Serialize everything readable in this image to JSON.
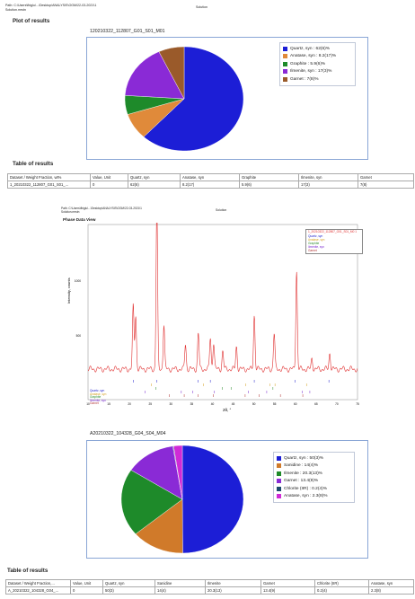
{
  "header1": {
    "path": "Path: C:\\Users\\fbiglu\\...\\Desktop\\ANALYSIS\\OGM\\22-03-2021\\1",
    "file": "Solution.mrstn",
    "center": "Solution"
  },
  "section1": {
    "plot_title": "Plot of results",
    "chart_title": "120210322_112807_G01_S01_M01",
    "table_title": "Table of results"
  },
  "table1": {
    "headers": [
      "Dataset / Weight Fraction, wt%",
      "Value, Unit",
      "Quartz, syn",
      "Anatase, syn",
      "Graphite",
      "Ilmenite, syn",
      "Garnet"
    ],
    "row": [
      "1_20210322_112807_G01_S01_...",
      "0",
      "62(6)",
      "8.2(17)",
      "5.9(6)",
      "17(3)",
      "7(8)"
    ]
  },
  "header2": {
    "path": "Path: C:\\Users\\fbiglu\\...\\Desktop\\ANALYSIS\\OGM\\22-03-2021\\1",
    "file": "Solution.mrstn",
    "center": "Solution"
  },
  "xrd": {
    "title": "Phase Data View",
    "ylabel": "Intensity, counts",
    "xlabel": "2θ, °",
    "xticks": [
      "10",
      "15",
      "20",
      "25",
      "30",
      "35",
      "40",
      "45",
      "50",
      "55",
      "60",
      "65",
      "70",
      "75"
    ],
    "yticks": [
      "1000",
      "500"
    ],
    "legend": [
      "1_20210322_112807_G01_S01_M0 1",
      "Quartz, syn",
      "Anatase, syn",
      "Graphite",
      "Ilmenite, syn",
      "Garnet"
    ],
    "phase_labels": [
      "Quartz, syn",
      "Anatase, syn",
      "Graphite",
      "Ilmenite, syn",
      "Garnet"
    ],
    "colors": {
      "pattern": "#e03030",
      "quartz": "#2222cc",
      "anatase": "#d4a020",
      "graphite": "#2a8a2a",
      "ilmenite": "#7a2ad0",
      "garnet": "#b03030"
    }
  },
  "section2": {
    "chart_title": "A20210322_104328_G04_S04_M04",
    "table_title": "Table of results"
  },
  "table2": {
    "headers": [
      "Dataset / Weight Fraction,...",
      "Value, Unit",
      "Quartz, syn",
      "Sanidine",
      "Ilmenite",
      "Garnet",
      "Chlorite (IIR)",
      "Anatase, syn"
    ],
    "row": [
      "A_20210322_104328_G04_...",
      "0",
      "50(3)",
      "14(4)",
      "20.3(13)",
      "13.4(9)",
      "0.2(4)",
      "2.3(8)"
    ]
  },
  "chart_data": [
    {
      "type": "pie",
      "title": "120210322_112807_G01_S01_M01",
      "categories": [
        "Quartz, syn",
        "Anatase, syn",
        "Graphite",
        "Ilmenite, syn",
        "Garnet"
      ],
      "values": [
        62,
        8.2,
        5.9,
        17,
        7
      ],
      "legend": [
        "Quartz, syn : 62(6)%",
        "Anatase, syn : 8.2(17)%",
        "Graphite : 5.9(6)%",
        "Ilmenite, syn : 17(3)%",
        "Garnet : 7(8)%"
      ],
      "colors": [
        "#1c1ed6",
        "#e08a3a",
        "#1e8a2a",
        "#8a2ad6",
        "#9a5a2a"
      ]
    },
    {
      "type": "pie",
      "title": "A20210322_104328_G04_S04_M04",
      "categories": [
        "Quartz, syn",
        "Sanidine",
        "Ilmenite",
        "Garnet",
        "Chlorite (IIR)",
        "Anatase, syn"
      ],
      "values": [
        50,
        14,
        20.3,
        13.4,
        0.2,
        2.3
      ],
      "legend": [
        "Quartz, syn : 50(3)%",
        "Sanidine : 14(4)%",
        "Ilmenite : 20.3(13)%",
        "Garnet : 13.4(9)%",
        "Chlorite (IIR) : 0.2(4)%",
        "Anatase, syn : 2.3(8)%"
      ],
      "colors": [
        "#1c1ed6",
        "#d07a2a",
        "#1e8a2a",
        "#8a2ad6",
        "#1a4a6a",
        "#d02ad6"
      ]
    }
  ]
}
